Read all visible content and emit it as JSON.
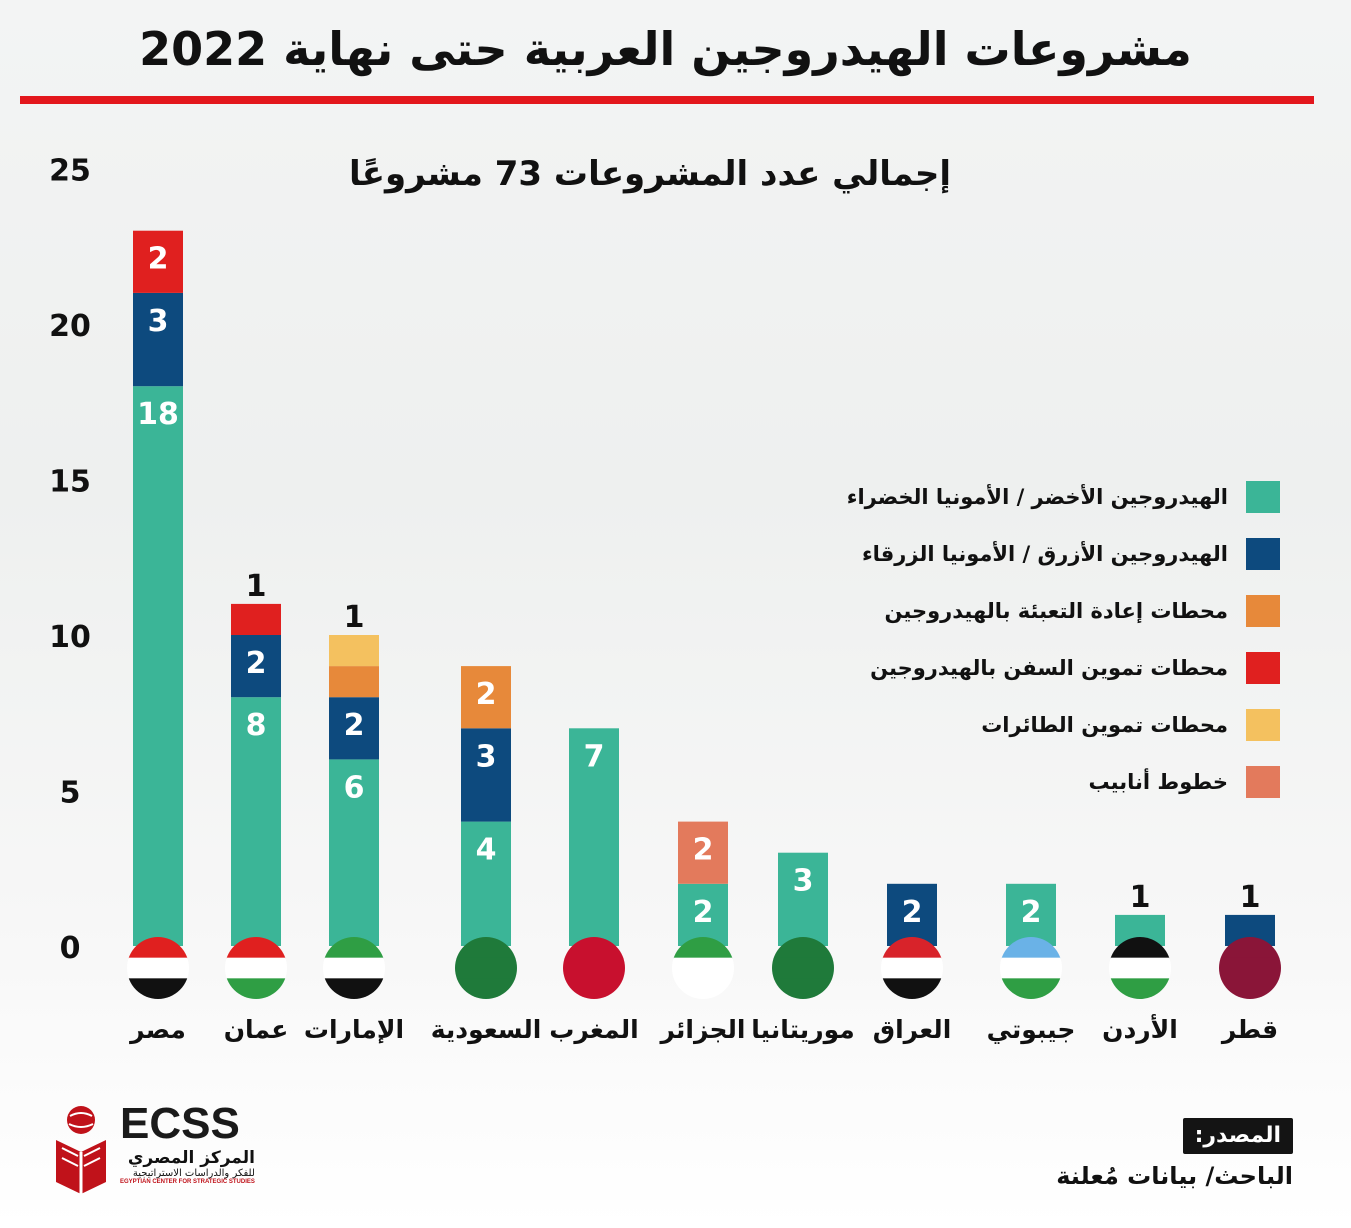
{
  "title": "مشروعات الهيدروجين العربية حتى نهاية 2022",
  "colors": {
    "accent_rule": "#e3161c",
    "green": "#3bb597",
    "blue": "#0d4a7e",
    "orange": "#e7893a",
    "red": "#e0201f",
    "yellow": "#f4c15f",
    "salmon": "#e37a5c"
  },
  "chart_data": {
    "type": "bar",
    "stacked": true,
    "title": "",
    "subtitle": "إجمالي عدد المشروعات 73 مشروعًا",
    "xlabel": "",
    "ylabel": "",
    "ylim": [
      0,
      25
    ],
    "yticks": [
      0,
      5,
      10,
      15,
      20,
      25
    ],
    "grid": false,
    "legend_position": "right",
    "categories": [
      "مصر",
      "عمان",
      "الإمارات",
      "السعودية",
      "المغرب",
      "الجزائر",
      "موريتانيا",
      "العراق",
      "جيبوتي",
      "الأردن",
      "قطر"
    ],
    "series": [
      {
        "name": "الهيدروجين الأخضر / الأمونيا الخضراء",
        "color": "#3bb597",
        "values": [
          18,
          8,
          6,
          4,
          7,
          2,
          3,
          0,
          2,
          1,
          0
        ]
      },
      {
        "name": "الهيدروجين الأزرق / الأمونيا الزرقاء",
        "color": "#0d4a7e",
        "values": [
          3,
          2,
          2,
          3,
          0,
          0,
          0,
          2,
          0,
          0,
          1
        ]
      },
      {
        "name": "محطات إعادة التعبئة بالهيدروجين",
        "color": "#e7893a",
        "values": [
          0,
          0,
          1,
          2,
          0,
          0,
          0,
          0,
          0,
          0,
          0
        ]
      },
      {
        "name": "محطات تموين السفن بالهيدروجين",
        "color": "#e0201f",
        "values": [
          2,
          1,
          0,
          0,
          0,
          0,
          0,
          0,
          0,
          0,
          0
        ]
      },
      {
        "name": "محطات تموين الطائرات",
        "color": "#f4c15f",
        "values": [
          0,
          0,
          1,
          0,
          0,
          0,
          0,
          0,
          0,
          0,
          0
        ]
      },
      {
        "name": "خطوط أنابيب",
        "color": "#e37a5c",
        "values": [
          0,
          0,
          0,
          0,
          0,
          2,
          0,
          0,
          0,
          0,
          0
        ]
      }
    ]
  },
  "logo": {
    "acronym": "ECSS",
    "arabic_name": "المركز المصري",
    "arabic_sub": "للفكر والدراسات الاستراتيجية",
    "english_name": "EGYPTIAN CENTER FOR STRATEGIC STUDIES"
  },
  "source": {
    "label": "المصدر:",
    "text": "الباحث/ بيانات مُعلنة"
  }
}
